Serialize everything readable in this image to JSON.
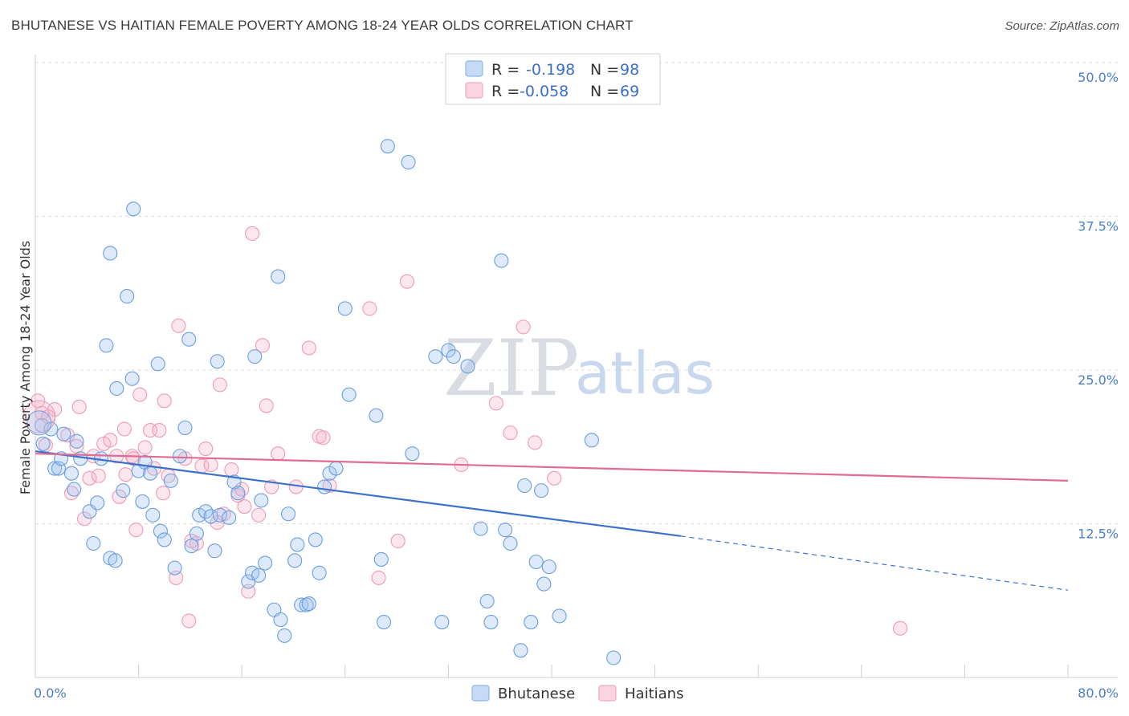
{
  "title": "BHUTANESE VS HAITIAN FEMALE POVERTY AMONG 18-24 YEAR OLDS CORRELATION CHART",
  "source": "Source: ZipAtlas.com",
  "watermark": {
    "zip": "ZIP",
    "atlas": "atlas"
  },
  "legend": {
    "r_label": "R =",
    "n_label": "N =",
    "entries": [
      {
        "r": "-0.198",
        "n": "98",
        "color": "#8fb6ea"
      },
      {
        "r": "-0.058",
        "n": "69",
        "color": "#f2a9bf"
      }
    ]
  },
  "bottom_legend": [
    {
      "label": "Bhutanese",
      "color": "#8fb6ea"
    },
    {
      "label": "Haitians",
      "color": "#f2a9bf"
    }
  ],
  "chart_data": {
    "type": "scatter",
    "title": "BHUTANESE VS HAITIAN FEMALE POVERTY AMONG 18-24 YEAR OLDS CORRELATION CHART",
    "xlabel": "",
    "ylabel": "Female Poverty Among 18-24 Year Olds",
    "xlim": [
      0,
      80
    ],
    "ylim": [
      0,
      50
    ],
    "x_tick_labels": [
      "0.0%",
      "80.0%"
    ],
    "y_ticks": [
      12.5,
      25.0,
      37.5,
      50.0
    ],
    "y_tick_labels": [
      "12.5%",
      "25.0%",
      "37.5%",
      "50.0%"
    ],
    "grid": true,
    "legend_position": "top-center",
    "series": [
      {
        "name": "Bhutanese",
        "color": "#6a9ee0",
        "trend": {
          "x0": 0,
          "y0": 18.4,
          "x1": 50,
          "y1": 11.5,
          "dashed_to_x": 80,
          "dashed_to_y": 7.1
        },
        "points": [
          [
            0.5,
            20.5
          ],
          [
            0.6,
            19.0
          ],
          [
            1.2,
            20.2
          ],
          [
            1.5,
            17.0
          ],
          [
            1.8,
            17.0
          ],
          [
            2.0,
            17.8
          ],
          [
            2.2,
            19.8
          ],
          [
            2.8,
            16.6
          ],
          [
            3.0,
            15.3
          ],
          [
            3.2,
            19.2
          ],
          [
            3.5,
            17.8
          ],
          [
            4.2,
            13.5
          ],
          [
            4.5,
            10.9
          ],
          [
            4.8,
            14.2
          ],
          [
            5.1,
            17.8
          ],
          [
            5.5,
            27.0
          ],
          [
            5.8,
            34.5
          ],
          [
            5.8,
            9.7
          ],
          [
            6.2,
            9.5
          ],
          [
            6.3,
            23.5
          ],
          [
            6.8,
            15.2
          ],
          [
            7.1,
            31.0
          ],
          [
            7.5,
            24.3
          ],
          [
            7.6,
            38.1
          ],
          [
            8.0,
            16.8
          ],
          [
            8.3,
            14.3
          ],
          [
            8.5,
            17.5
          ],
          [
            8.9,
            16.6
          ],
          [
            9.1,
            13.2
          ],
          [
            9.5,
            25.5
          ],
          [
            9.7,
            11.9
          ],
          [
            10.0,
            11.2
          ],
          [
            10.5,
            16.0
          ],
          [
            10.8,
            8.9
          ],
          [
            11.2,
            18.0
          ],
          [
            11.6,
            20.3
          ],
          [
            11.9,
            27.5
          ],
          [
            12.1,
            10.7
          ],
          [
            12.5,
            11.7
          ],
          [
            12.7,
            13.2
          ],
          [
            13.2,
            13.5
          ],
          [
            13.6,
            13.1
          ],
          [
            13.9,
            10.3
          ],
          [
            14.1,
            25.7
          ],
          [
            14.3,
            13.2
          ],
          [
            15.0,
            13.0
          ],
          [
            15.4,
            15.9
          ],
          [
            15.7,
            15.0
          ],
          [
            16.5,
            7.8
          ],
          [
            16.8,
            8.5
          ],
          [
            17.0,
            26.1
          ],
          [
            17.3,
            8.3
          ],
          [
            17.5,
            14.4
          ],
          [
            17.8,
            9.3
          ],
          [
            18.5,
            5.5
          ],
          [
            18.8,
            32.6
          ],
          [
            19.0,
            4.7
          ],
          [
            19.3,
            3.4
          ],
          [
            19.6,
            13.3
          ],
          [
            20.1,
            9.5
          ],
          [
            20.3,
            10.8
          ],
          [
            20.6,
            5.9
          ],
          [
            21.0,
            5.9
          ],
          [
            21.7,
            11.2
          ],
          [
            22.0,
            8.5
          ],
          [
            22.4,
            15.5
          ],
          [
            22.8,
            16.6
          ],
          [
            23.3,
            17.0
          ],
          [
            24.0,
            30.0
          ],
          [
            24.3,
            23.0
          ],
          [
            26.4,
            21.3
          ],
          [
            26.8,
            9.6
          ],
          [
            27.0,
            4.5
          ],
          [
            27.3,
            43.2
          ],
          [
            28.9,
            41.9
          ],
          [
            29.2,
            18.2
          ],
          [
            31.0,
            26.1
          ],
          [
            31.5,
            4.5
          ],
          [
            32.0,
            26.6
          ],
          [
            32.4,
            26.1
          ],
          [
            33.5,
            25.3
          ],
          [
            34.5,
            12.1
          ],
          [
            35.0,
            6.2
          ],
          [
            35.3,
            4.5
          ],
          [
            36.1,
            33.9
          ],
          [
            36.4,
            12.0
          ],
          [
            36.8,
            10.9
          ],
          [
            37.6,
            2.2
          ],
          [
            37.9,
            15.6
          ],
          [
            38.4,
            4.5
          ],
          [
            38.8,
            9.4
          ],
          [
            39.2,
            15.2
          ],
          [
            39.4,
            7.6
          ],
          [
            39.8,
            9.0
          ],
          [
            40.6,
            5.0
          ],
          [
            43.1,
            19.3
          ],
          [
            44.8,
            1.6
          ],
          [
            21.2,
            6.0
          ]
        ]
      },
      {
        "name": "Haitians",
        "color": "#f19ab5",
        "trend": {
          "x0": 0,
          "y0": 18.2,
          "x1": 80,
          "y1": 16.0
        },
        "points": [
          [
            0.5,
            21.5
          ],
          [
            0.8,
            18.9
          ],
          [
            1.0,
            21.2
          ],
          [
            1.5,
            21.8
          ],
          [
            2.5,
            19.7
          ],
          [
            2.8,
            15.0
          ],
          [
            3.2,
            18.8
          ],
          [
            3.4,
            22.0
          ],
          [
            3.8,
            12.9
          ],
          [
            4.2,
            16.2
          ],
          [
            4.5,
            18.0
          ],
          [
            4.9,
            16.4
          ],
          [
            5.3,
            19.0
          ],
          [
            5.8,
            19.3
          ],
          [
            6.3,
            18.0
          ],
          [
            6.5,
            14.7
          ],
          [
            6.9,
            20.2
          ],
          [
            7.0,
            16.5
          ],
          [
            7.5,
            18.0
          ],
          [
            7.6,
            17.8
          ],
          [
            7.8,
            12.0
          ],
          [
            8.1,
            23.0
          ],
          [
            8.5,
            18.7
          ],
          [
            8.9,
            20.1
          ],
          [
            9.2,
            17.0
          ],
          [
            9.6,
            20.1
          ],
          [
            9.9,
            15.0
          ],
          [
            10.0,
            22.5
          ],
          [
            10.3,
            16.4
          ],
          [
            10.9,
            8.1
          ],
          [
            11.1,
            28.6
          ],
          [
            11.6,
            17.8
          ],
          [
            11.9,
            4.6
          ],
          [
            12.1,
            11.1
          ],
          [
            12.5,
            10.9
          ],
          [
            12.9,
            17.2
          ],
          [
            13.2,
            18.6
          ],
          [
            13.6,
            17.3
          ],
          [
            14.1,
            12.6
          ],
          [
            14.3,
            23.8
          ],
          [
            14.6,
            13.3
          ],
          [
            15.2,
            16.9
          ],
          [
            15.7,
            14.8
          ],
          [
            16.0,
            15.3
          ],
          [
            16.2,
            13.9
          ],
          [
            16.5,
            7.0
          ],
          [
            16.8,
            36.1
          ],
          [
            17.3,
            13.2
          ],
          [
            17.6,
            27.0
          ],
          [
            17.9,
            22.1
          ],
          [
            18.3,
            15.5
          ],
          [
            18.8,
            18.2
          ],
          [
            20.2,
            15.5
          ],
          [
            21.2,
            26.8
          ],
          [
            22.0,
            19.6
          ],
          [
            22.3,
            19.5
          ],
          [
            22.8,
            15.6
          ],
          [
            25.9,
            30.0
          ],
          [
            26.6,
            8.1
          ],
          [
            28.1,
            11.1
          ],
          [
            28.8,
            32.2
          ],
          [
            33.0,
            17.3
          ],
          [
            35.7,
            22.3
          ],
          [
            36.8,
            19.9
          ],
          [
            37.8,
            28.5
          ],
          [
            38.7,
            19.1
          ],
          [
            40.2,
            16.2
          ],
          [
            67.0,
            4.0
          ],
          [
            0.2,
            22.5
          ]
        ]
      }
    ]
  }
}
